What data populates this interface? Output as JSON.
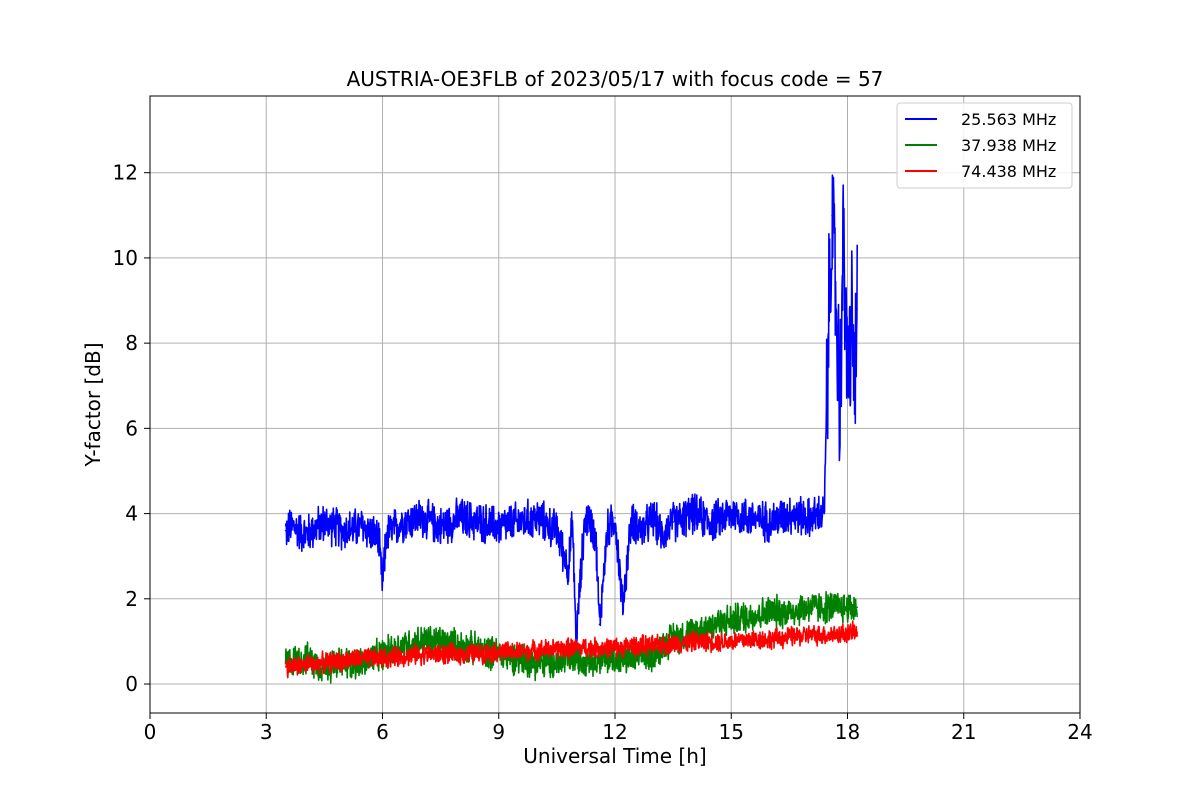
{
  "chart_data": {
    "type": "line",
    "title": "AUSTRIA-OE3FLB of 2023/05/17 with focus code = 57",
    "xlabel": "Universal Time [h]",
    "ylabel": "Y-factor [dB]",
    "xlim": [
      0,
      24
    ],
    "ylim": [
      -0.68,
      13.8
    ],
    "xticks": [
      0,
      3,
      6,
      9,
      12,
      15,
      18,
      21,
      24
    ],
    "yticks": [
      0,
      2,
      4,
      6,
      8,
      10,
      12
    ],
    "grid": true,
    "legend_position": "top-right",
    "series": [
      {
        "name": "25.563 MHz",
        "color": "#0000ff",
        "x": [
          3.5,
          3.7,
          4.0,
          4.5,
          5.0,
          5.5,
          5.9,
          6.0,
          6.1,
          6.5,
          7.0,
          7.5,
          8.0,
          8.5,
          9.0,
          9.5,
          10.0,
          10.5,
          10.8,
          10.9,
          11.0,
          11.2,
          11.3,
          11.5,
          11.6,
          11.8,
          12.0,
          12.2,
          12.4,
          12.5,
          12.7,
          13.0,
          13.2,
          13.5,
          13.8,
          14.0,
          14.5,
          15.0,
          15.5,
          16.0,
          16.5,
          17.0,
          17.4,
          17.5,
          17.6,
          17.7,
          17.8,
          17.9,
          18.0,
          18.1,
          18.2,
          18.25
        ],
        "values": [
          3.6,
          3.7,
          3.5,
          3.8,
          3.6,
          3.7,
          3.4,
          2.3,
          3.5,
          3.8,
          3.9,
          3.7,
          3.9,
          3.8,
          3.7,
          3.8,
          3.9,
          3.6,
          2.7,
          3.8,
          1.0,
          3.7,
          3.9,
          3.5,
          1.4,
          3.6,
          3.9,
          1.8,
          3.7,
          3.8,
          3.6,
          3.9,
          3.5,
          3.8,
          3.9,
          4.0,
          3.8,
          4.0,
          3.9,
          3.8,
          4.0,
          3.9,
          4.0,
          8.0,
          11.0,
          9.0,
          6.5,
          10.5,
          7.0,
          8.5,
          7.2,
          8.8
        ],
        "noise": 0.55
      },
      {
        "name": "37.938 MHz",
        "color": "#008000",
        "x": [
          3.5,
          4.0,
          4.5,
          5.0,
          5.5,
          6.0,
          6.5,
          7.0,
          7.5,
          8.0,
          8.5,
          9.0,
          9.5,
          10.0,
          10.5,
          11.0,
          11.5,
          12.0,
          12.5,
          13.0,
          13.5,
          14.0,
          14.5,
          15.0,
          15.5,
          16.0,
          16.5,
          17.0,
          17.5,
          18.0,
          18.25
        ],
        "values": [
          0.5,
          0.6,
          0.4,
          0.5,
          0.5,
          0.7,
          0.9,
          1.0,
          1.0,
          0.9,
          0.8,
          0.7,
          0.6,
          0.5,
          0.5,
          0.6,
          0.6,
          0.6,
          0.6,
          0.7,
          1.1,
          1.2,
          1.4,
          1.5,
          1.6,
          1.7,
          1.7,
          1.8,
          1.8,
          1.8,
          1.8
        ],
        "noise": 0.45
      },
      {
        "name": "74.438 MHz",
        "color": "#ff0000",
        "x": [
          3.5,
          4.0,
          4.5,
          5.0,
          5.5,
          6.0,
          6.5,
          7.0,
          7.5,
          8.0,
          8.5,
          9.0,
          9.5,
          10.0,
          10.5,
          11.0,
          11.5,
          12.0,
          12.5,
          13.0,
          13.5,
          14.0,
          14.5,
          15.0,
          15.5,
          16.0,
          16.5,
          17.0,
          17.5,
          18.0,
          18.25
        ],
        "values": [
          0.4,
          0.45,
          0.5,
          0.55,
          0.6,
          0.6,
          0.65,
          0.7,
          0.7,
          0.7,
          0.72,
          0.75,
          0.75,
          0.8,
          0.82,
          0.85,
          0.85,
          0.85,
          0.9,
          0.9,
          0.95,
          1.0,
          1.0,
          1.0,
          1.05,
          1.05,
          1.1,
          1.15,
          1.15,
          1.2,
          1.2
        ],
        "noise": 0.28
      }
    ]
  }
}
